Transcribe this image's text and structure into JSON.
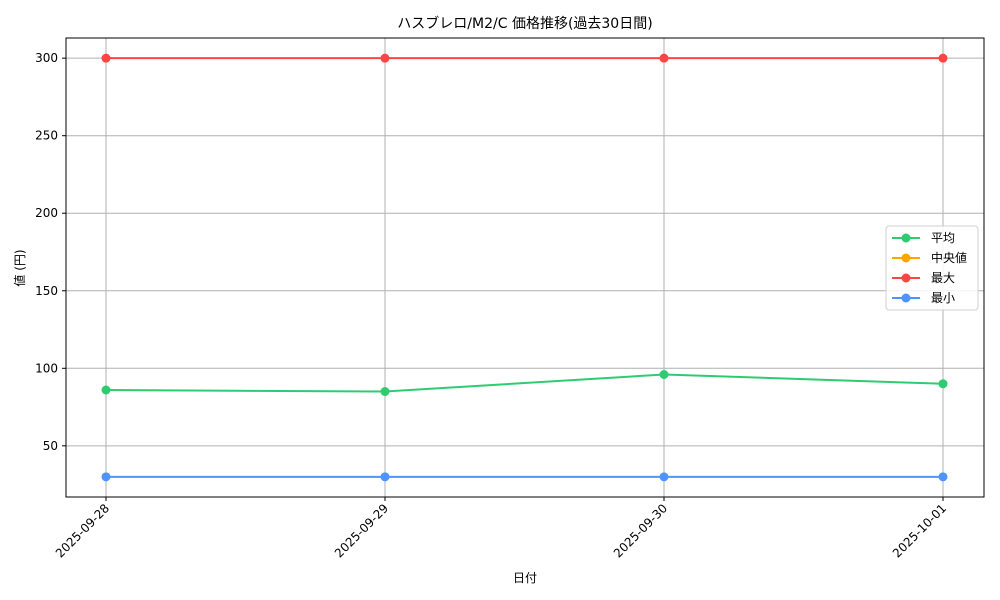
{
  "chart_data": {
    "type": "line",
    "title": "ハスブレロ/M2/C 価格推移(過去30日間)",
    "xlabel": "日付",
    "ylabel": "値 (円)",
    "categories": [
      "2025-09-28",
      "2025-09-29",
      "2025-09-30",
      "2025-10-01"
    ],
    "ylim": [
      17,
      313
    ],
    "yticks": [
      50,
      100,
      150,
      200,
      250,
      300
    ],
    "grid": true,
    "legend_position": "center-right",
    "series": [
      {
        "name": "平均",
        "color": "#2ecc71",
        "values": [
          86,
          85,
          96,
          90
        ]
      },
      {
        "name": "中央値",
        "color": "#ffa500",
        "values": [
          null,
          null,
          null,
          null
        ]
      },
      {
        "name": "最大",
        "color": "#ff4444",
        "values": [
          300,
          300,
          300,
          300
        ]
      },
      {
        "name": "最小",
        "color": "#4d94ff",
        "values": [
          30,
          30,
          30,
          30
        ]
      }
    ]
  }
}
